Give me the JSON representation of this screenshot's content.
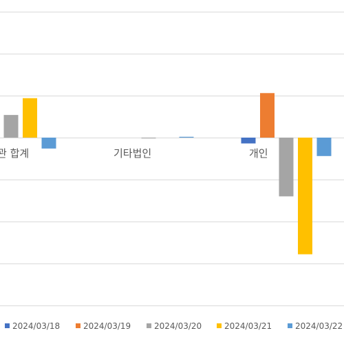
{
  "chart_data": {
    "type": "bar",
    "categories": [
      "기관 합계",
      "기타법인",
      "개인"
    ],
    "categories_visible_text": [
      "관 합계",
      "기타법인",
      "개인"
    ],
    "series": [
      {
        "name": "2024/03/18",
        "color": "#4472C4",
        "values": [
          null,
          null,
          -7
        ]
      },
      {
        "name": "2024/03/19",
        "color": "#ED7D31",
        "values": [
          null,
          null,
          53
        ]
      },
      {
        "name": "2024/03/20",
        "color": "#A5A5A5",
        "values": [
          27,
          -1,
          -70
        ]
      },
      {
        "name": "2024/03/21",
        "color": "#FFC000",
        "values": [
          47,
          null,
          -139
        ]
      },
      {
        "name": "2024/03/22",
        "color": "#5B9BD5",
        "values": [
          -13,
          1,
          -22
        ]
      }
    ],
    "ylim": [
      -200,
      150
    ],
    "ytick_step": 50,
    "grid": true,
    "legend": "bottom"
  }
}
